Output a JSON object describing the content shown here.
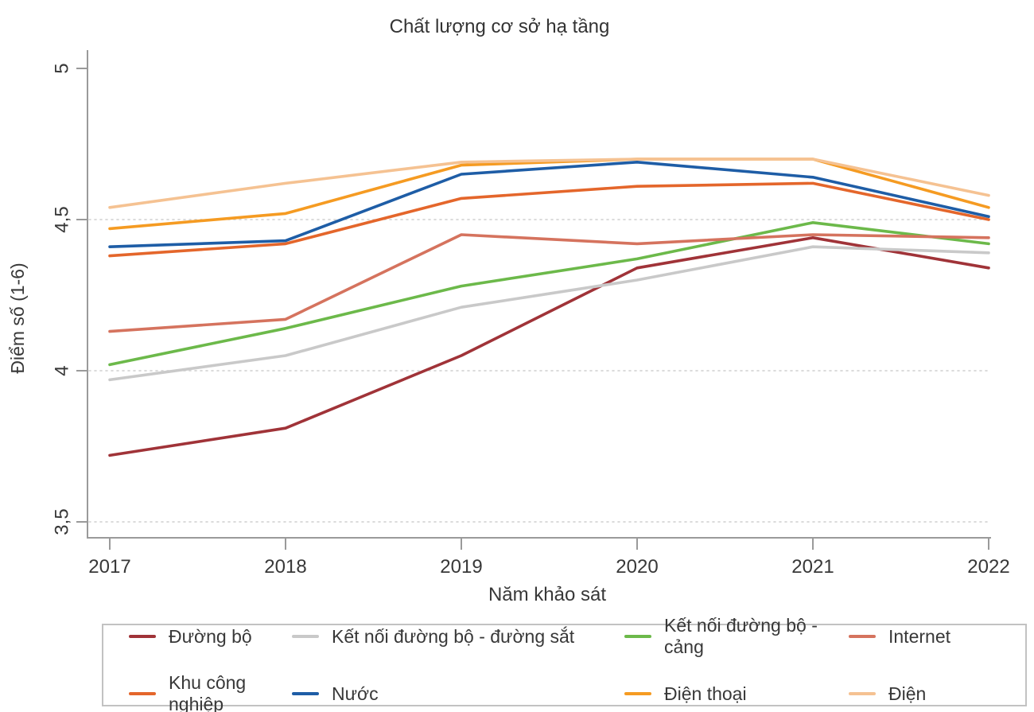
{
  "title": "Chất lượng cơ sở hạ tầng",
  "chart_data": {
    "type": "line",
    "title": "Chất lượng cơ sở hạ tầng",
    "xlabel": "Năm khảo sát",
    "ylabel": "Điểm số (1-6)",
    "x": [
      2017,
      2018,
      2019,
      2020,
      2021,
      2022
    ],
    "ylim": [
      3.45,
      5.05
    ],
    "yticks": [
      {
        "value": 5,
        "label": "5",
        "gridline": false
      },
      {
        "value": 4.5,
        "label": "4,5",
        "gridline": true
      },
      {
        "value": 4,
        "label": "4",
        "gridline": true
      },
      {
        "value": 3.5,
        "label": "3,5",
        "gridline": true
      }
    ],
    "grid": "horizontal-dotted",
    "legend_position": "bottom",
    "series": [
      {
        "name": "Đường bộ",
        "color": "#a03338",
        "values": [
          3.72,
          3.81,
          4.05,
          4.34,
          4.44,
          4.34
        ]
      },
      {
        "name": "Kết nối đường bộ - đường sắt",
        "color": "#c9c9c9",
        "values": [
          3.97,
          4.05,
          4.21,
          4.3,
          4.41,
          4.39
        ]
      },
      {
        "name": "Kết nối đường bộ - cảng",
        "color": "#6cb94a",
        "values": [
          4.02,
          4.14,
          4.28,
          4.37,
          4.49,
          4.42
        ]
      },
      {
        "name": "Internet",
        "color": "#d5735e",
        "values": [
          4.13,
          4.17,
          4.45,
          4.42,
          4.45,
          4.44
        ]
      },
      {
        "name": "Khu công nghiệp",
        "color": "#e4662b",
        "values": [
          4.38,
          4.42,
          4.57,
          4.61,
          4.62,
          4.5
        ]
      },
      {
        "name": "Nước",
        "color": "#1e5da6",
        "values": [
          4.41,
          4.43,
          4.65,
          4.69,
          4.64,
          4.51
        ]
      },
      {
        "name": "Điện thoại",
        "color": "#f59b22",
        "values": [
          4.47,
          4.52,
          4.68,
          4.7,
          4.7,
          4.54
        ]
      },
      {
        "name": "Điện",
        "color": "#f5c292",
        "values": [
          4.54,
          4.62,
          4.69,
          4.7,
          4.7,
          4.58
        ]
      }
    ]
  }
}
